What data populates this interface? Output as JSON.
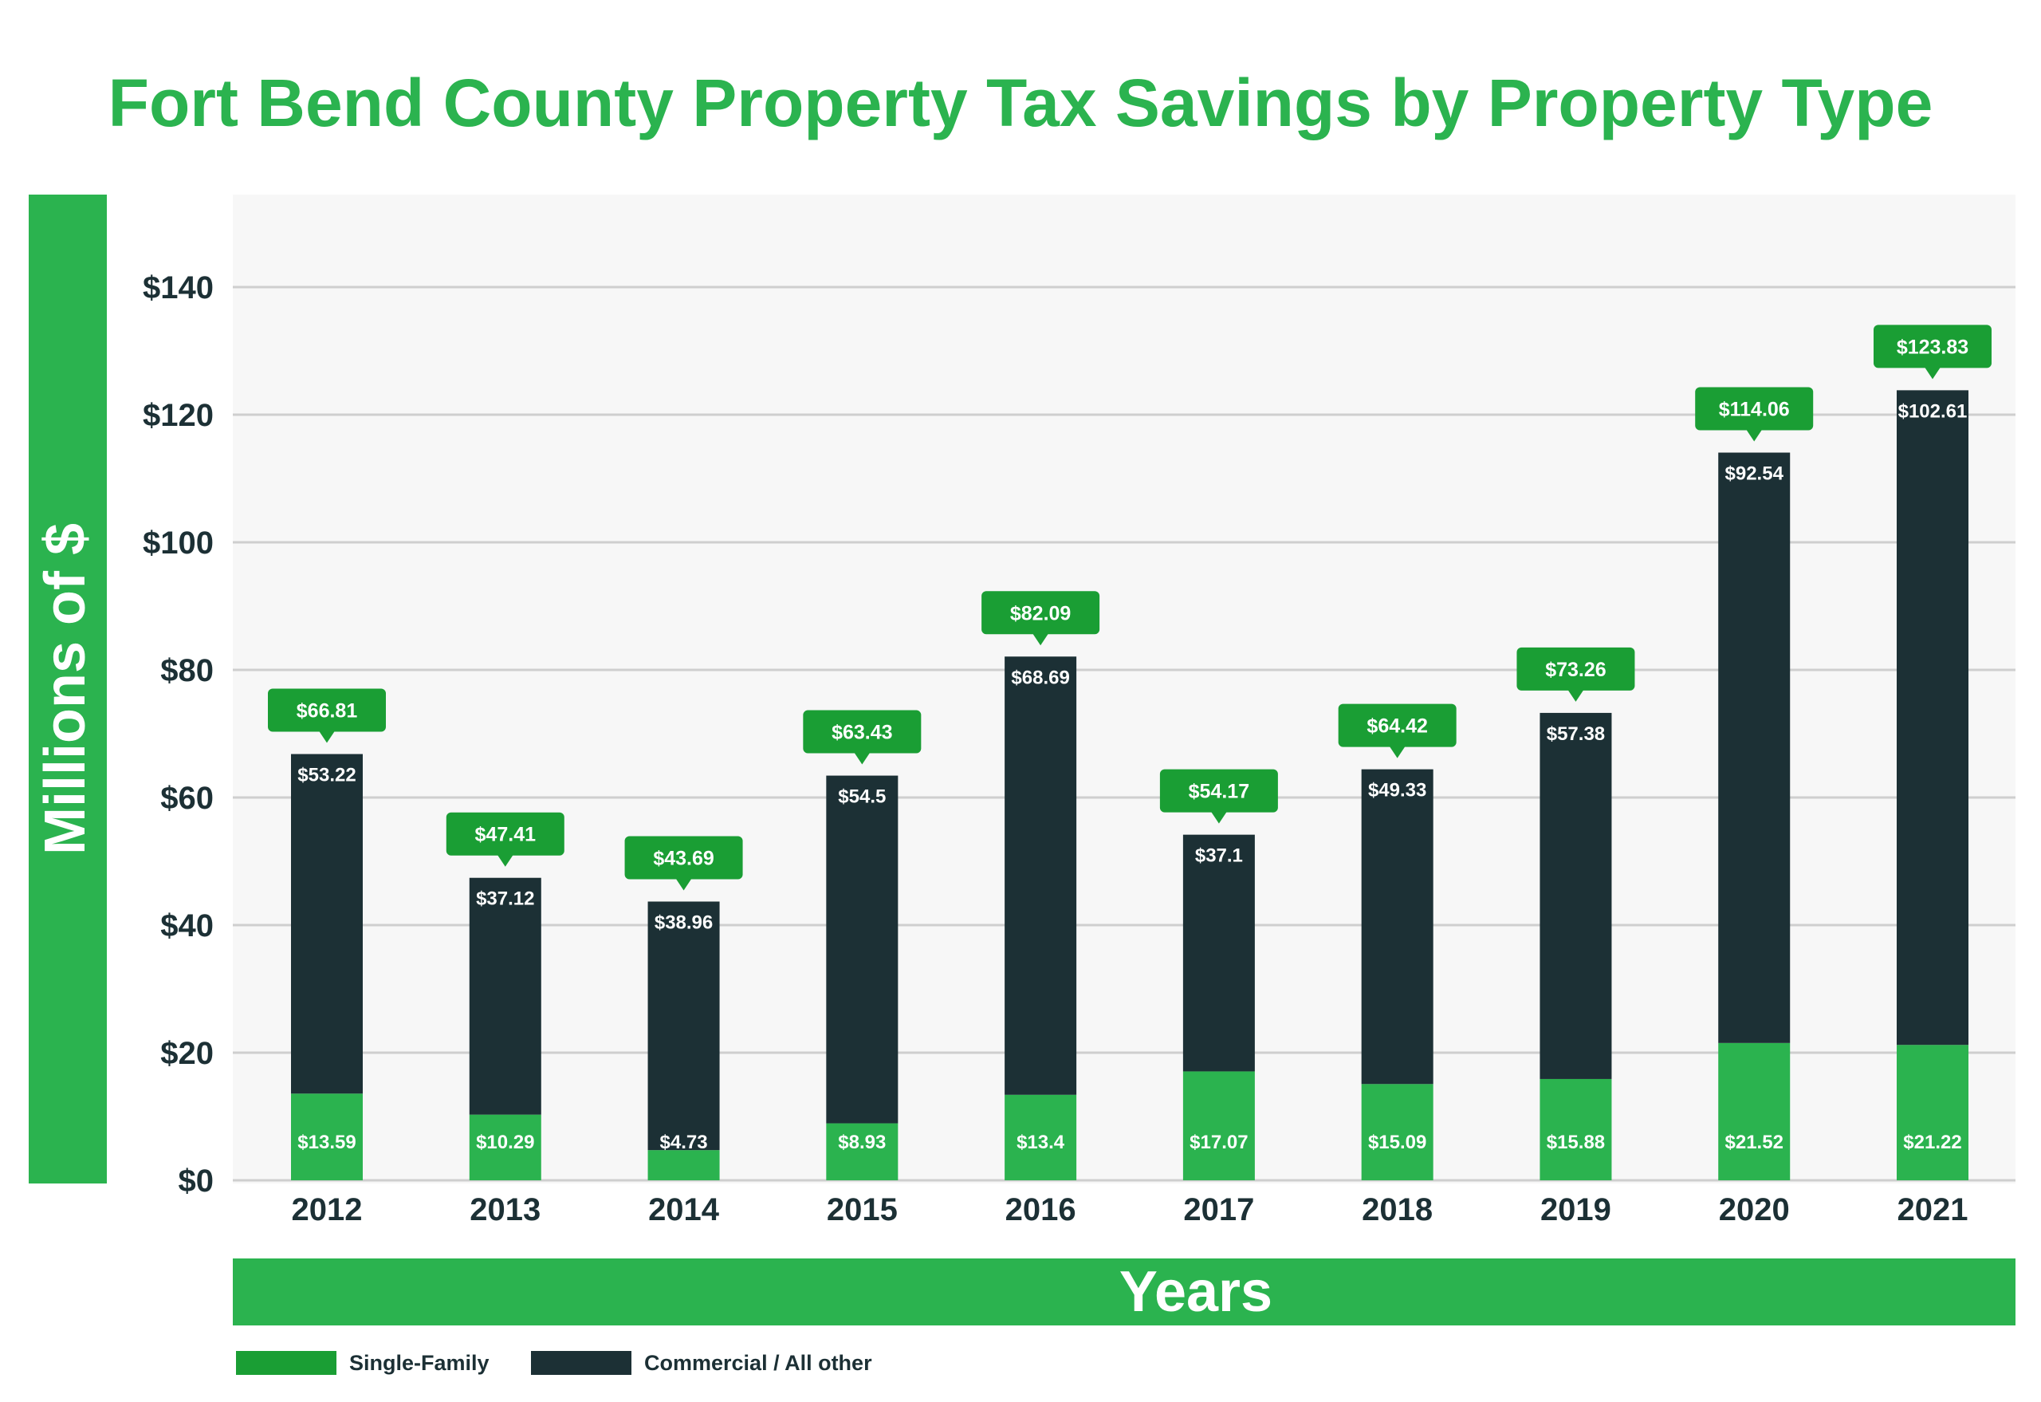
{
  "chart_data": {
    "type": "bar",
    "stacked": true,
    "title": "Fort Bend County Property Tax Savings by Property Type",
    "xlabel": "Years",
    "ylabel": "Millions of $",
    "ylim": [
      0,
      155
    ],
    "yticks": [
      0,
      20,
      40,
      60,
      80,
      100,
      120,
      140
    ],
    "ytick_labels": [
      "$0",
      "$20",
      "$40",
      "$60",
      "$80",
      "$100",
      "$120",
      "$140"
    ],
    "grid": true,
    "legend_position": "bottom-left",
    "categories": [
      "2012",
      "2013",
      "2014",
      "2015",
      "2016",
      "2017",
      "2018",
      "2019",
      "2020",
      "2021"
    ],
    "series": [
      {
        "name": "Single-Family",
        "color": "#2bb34f",
        "values": [
          13.59,
          10.29,
          4.73,
          8.93,
          13.4,
          17.07,
          15.09,
          15.88,
          21.52,
          21.22
        ],
        "labels": [
          "$13.59",
          "$10.29",
          "$4.73",
          "$8.93",
          "$13.4",
          "$17.07",
          "$15.09",
          "$15.88",
          "$21.52",
          "$21.22"
        ]
      },
      {
        "name": "Commercial / All other",
        "color": "#1c3035",
        "values": [
          53.22,
          37.12,
          38.96,
          54.5,
          68.69,
          37.1,
          49.33,
          57.38,
          92.54,
          102.61
        ],
        "labels": [
          "$53.22",
          "$37.12",
          "$38.96",
          "$54.5",
          "$68.69",
          "$37.1",
          "$49.33",
          "$57.38",
          "$92.54",
          "$102.61"
        ]
      }
    ],
    "totals": [
      66.81,
      47.41,
      43.69,
      63.43,
      82.09,
      54.17,
      64.42,
      73.26,
      114.06,
      123.83
    ],
    "total_labels": [
      "$66.81",
      "$47.41",
      "$43.69",
      "$63.43",
      "$82.09",
      "$54.17",
      "$64.42",
      "$73.26",
      "$114.06",
      "$123.83"
    ],
    "colors": {
      "title": "#2bb34f",
      "axis_band": "#2bb34f",
      "callout": "#1a9e34",
      "plot_bg": "#f7f7f7",
      "grid": "#cfcfcf",
      "tick_text": "#1c3035",
      "legend_single_family": "#1a9e34"
    }
  }
}
